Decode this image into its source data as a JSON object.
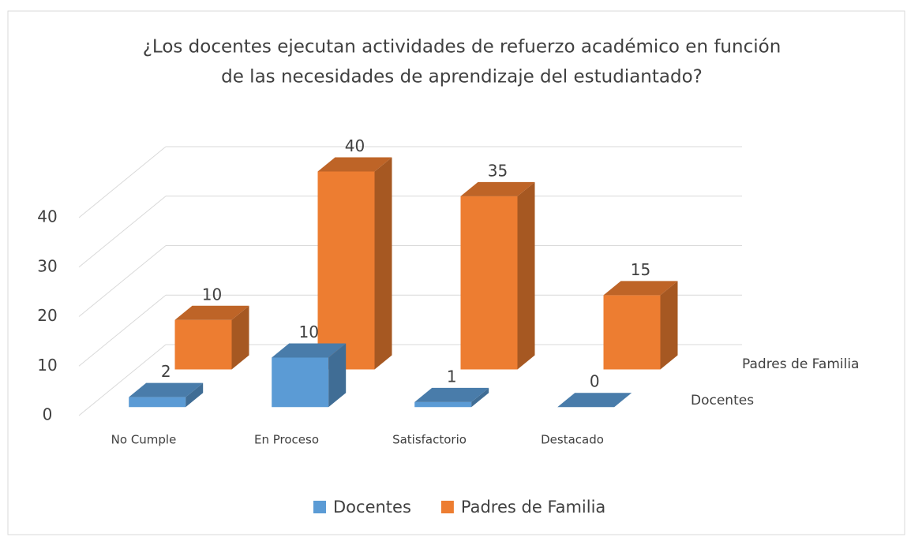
{
  "chart_data": {
    "type": "bar3d",
    "title": [
      "¿Los docentes ejecutan actividades de refuerzo académico en función",
      "de las necesidades de aprendizaje del estudiantado?"
    ],
    "categories": [
      "No Cumple",
      "En Proceso",
      "Satisfactorio",
      "Destacado"
    ],
    "series": [
      {
        "name": "Docentes",
        "color": "#5b9bd5",
        "values": [
          2,
          10,
          1,
          0
        ]
      },
      {
        "name": "Padres de Familia",
        "color": "#ed7d31",
        "values": [
          10,
          40,
          35,
          15
        ]
      }
    ],
    "ylim": [
      0,
      40
    ],
    "yticks": [
      0,
      10,
      20,
      30,
      40
    ],
    "grid": true,
    "legend": "bottom"
  }
}
